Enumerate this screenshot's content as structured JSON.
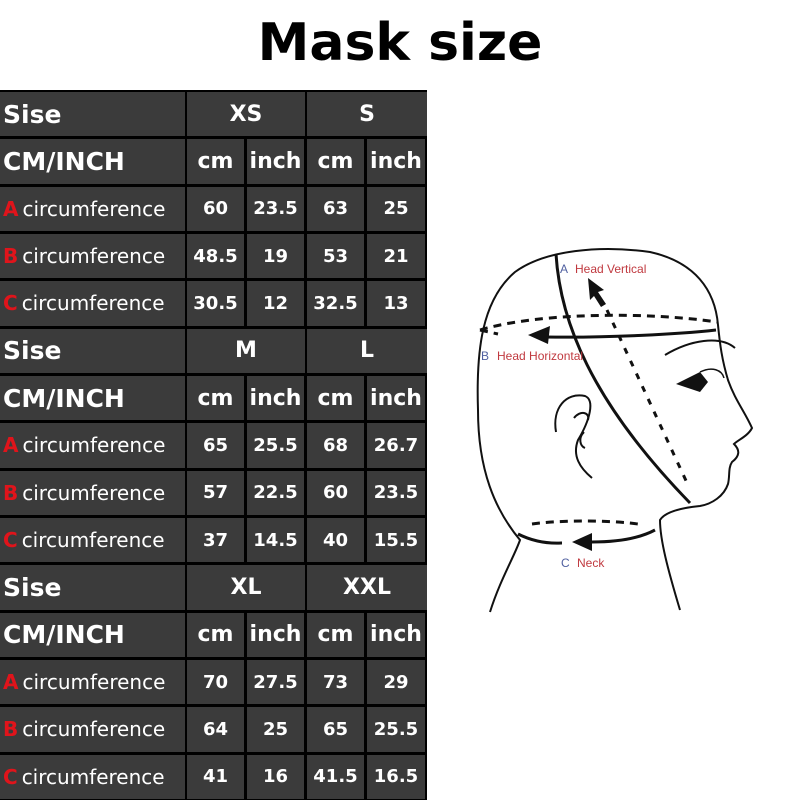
{
  "title": "Mask size",
  "table": {
    "size_label": "Sise",
    "unit_label": "CM/INCH",
    "unit_cm": "cm",
    "unit_inch": "inch",
    "measure_word": "circumference",
    "letter_color": "#e0141b",
    "groups": [
      {
        "sizes": [
          "XS",
          "S"
        ],
        "rows": [
          {
            "letter": "A",
            "values": [
              "60",
              "23.5",
              "63",
              "25"
            ]
          },
          {
            "letter": "B",
            "values": [
              "48.5",
              "19",
              "53",
              "21"
            ]
          },
          {
            "letter": "C",
            "values": [
              "30.5",
              "12",
              "32.5",
              "13"
            ]
          }
        ]
      },
      {
        "sizes": [
          "M",
          "L"
        ],
        "rows": [
          {
            "letter": "A",
            "values": [
              "65",
              "25.5",
              "68",
              "26.7"
            ]
          },
          {
            "letter": "B",
            "values": [
              "57",
              "22.5",
              "60",
              "23.5"
            ]
          },
          {
            "letter": "C",
            "values": [
              "37",
              "14.5",
              "40",
              "15.5"
            ]
          }
        ]
      },
      {
        "sizes": [
          "XL",
          "XXL"
        ],
        "rows": [
          {
            "letter": "A",
            "values": [
              "70",
              "27.5",
              "73",
              "29"
            ]
          },
          {
            "letter": "B",
            "values": [
              "64",
              "25",
              "65",
              "25.5"
            ]
          },
          {
            "letter": "C",
            "values": [
              "41",
              "16",
              "41.5",
              "16.5"
            ]
          }
        ]
      }
    ]
  },
  "diagram": {
    "a_letter": "A",
    "a_label": "Head Vertical",
    "b_letter": "B",
    "b_label": "Head Horizontal",
    "c_letter": "C",
    "c_label": "Neck"
  }
}
